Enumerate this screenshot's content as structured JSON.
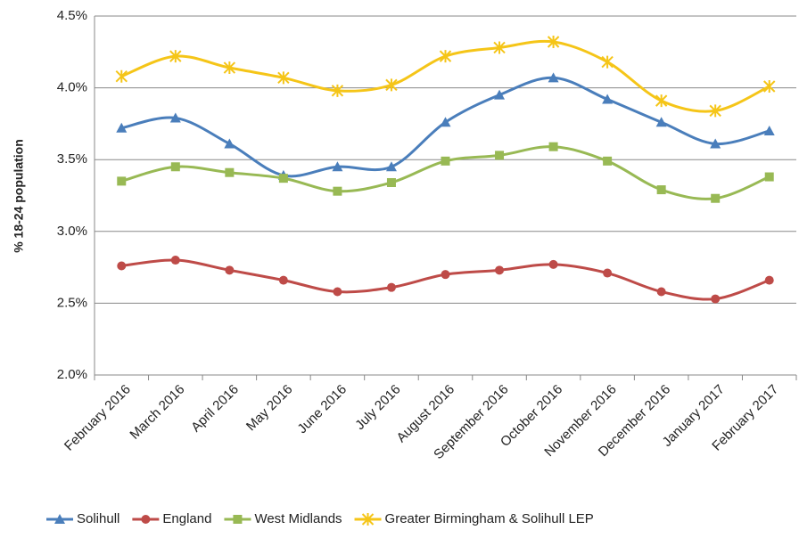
{
  "chart_data": {
    "type": "line",
    "y_label": "% 18-24 population",
    "categories": [
      "February 2016",
      "March 2016",
      "April 2016",
      "May 2016",
      "June 2016",
      "July 2016",
      "August 2016",
      "September 2016",
      "October 2016",
      "November 2016",
      "December 2016",
      "January 2017",
      "February 2017"
    ],
    "series": [
      {
        "name": "Solihull",
        "color": "#4a7ebb",
        "marker": "triangle",
        "values": [
          3.72,
          3.79,
          3.61,
          3.39,
          3.45,
          3.45,
          3.76,
          3.95,
          4.07,
          3.92,
          3.76,
          3.61,
          3.7
        ]
      },
      {
        "name": "England",
        "color": "#be4b48",
        "marker": "circle",
        "values": [
          2.76,
          2.8,
          2.73,
          2.66,
          2.58,
          2.61,
          2.7,
          2.73,
          2.77,
          2.71,
          2.58,
          2.53,
          2.66
        ]
      },
      {
        "name": "West Midlands",
        "color": "#98b954",
        "marker": "square",
        "values": [
          3.35,
          3.45,
          3.41,
          3.37,
          3.28,
          3.34,
          3.49,
          3.53,
          3.59,
          3.49,
          3.29,
          3.23,
          3.38
        ]
      },
      {
        "name": "Greater Birmingham & Solihull LEP",
        "color": "#f5c518",
        "marker": "star",
        "values": [
          4.08,
          4.22,
          4.14,
          4.07,
          3.98,
          4.02,
          4.22,
          4.28,
          4.32,
          4.18,
          3.91,
          3.84,
          4.01
        ]
      }
    ],
    "ylim": [
      2.0,
      4.5
    ],
    "yticks": [
      {
        "value": 2.0,
        "label": "2.0%"
      },
      {
        "value": 2.5,
        "label": "2.5%"
      },
      {
        "value": 3.0,
        "label": "3.0%"
      },
      {
        "value": 3.5,
        "label": "3.5%"
      },
      {
        "value": 4.0,
        "label": "4.0%"
      },
      {
        "value": 4.5,
        "label": "4.5%"
      }
    ],
    "grid": true,
    "smooth": true,
    "legend": "bottom"
  }
}
